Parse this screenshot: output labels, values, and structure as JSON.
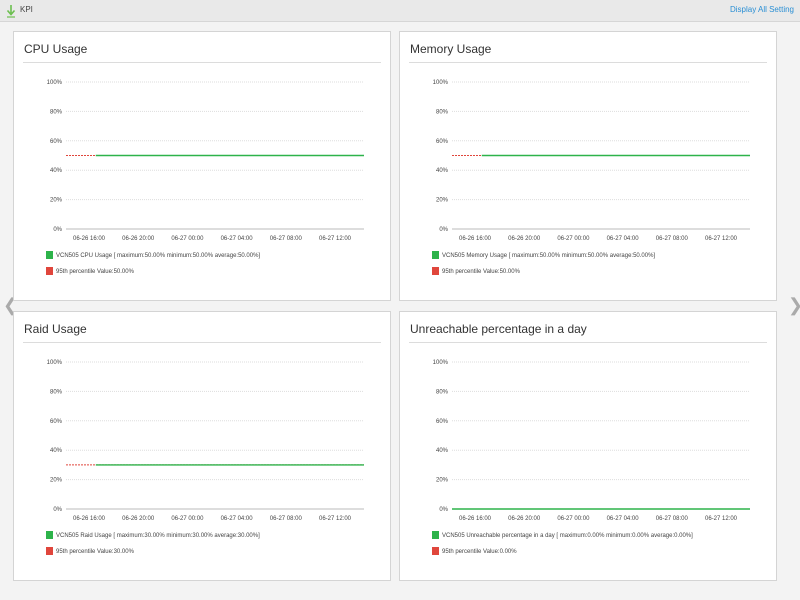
{
  "header": {
    "title": "KPI",
    "display_all_link": "Display All Setting"
  },
  "colors": {
    "series_green": "#2db34a",
    "percentile_red": "#e0463c",
    "grid": "#dddddd",
    "link": "#2a8fd4"
  },
  "chart_data": [
    {
      "type": "line",
      "title": "CPU Usage",
      "x_ticks": [
        "06-26 16:00",
        "06-26 20:00",
        "06-27 00:00",
        "06-27 04:00",
        "06-27 08:00",
        "06-27 12:00"
      ],
      "y_ticks": [
        "0%",
        "20%",
        "40%",
        "60%",
        "80%",
        "100%"
      ],
      "ylim": [
        0,
        100
      ],
      "series": [
        {
          "name": "VCN505 CPU Usage [ maximum:50.00% minimum:50.00% average:50.00%]",
          "color": "#2db34a",
          "style": "solid",
          "value": 50,
          "x_start": 0.1
        },
        {
          "name": "95th percentile Value:50.00%",
          "color": "#e0463c",
          "style": "dashed",
          "value": 50,
          "x_start": 0
        }
      ]
    },
    {
      "type": "line",
      "title": "Memory Usage",
      "x_ticks": [
        "06-26 16:00",
        "06-26 20:00",
        "06-27 00:00",
        "06-27 04:00",
        "06-27 08:00",
        "06-27 12:00"
      ],
      "y_ticks": [
        "0%",
        "20%",
        "40%",
        "60%",
        "80%",
        "100%"
      ],
      "ylim": [
        0,
        100
      ],
      "series": [
        {
          "name": "VCN505 Memory Usage [ maximum:50.00% minimum:50.00% average:50.00%]",
          "color": "#2db34a",
          "style": "solid",
          "value": 50,
          "x_start": 0.1
        },
        {
          "name": "95th percentile Value:50.00%",
          "color": "#e0463c",
          "style": "dashed",
          "value": 50,
          "x_start": 0
        }
      ]
    },
    {
      "type": "line",
      "title": "Raid Usage",
      "x_ticks": [
        "06-26 16:00",
        "06-26 20:00",
        "06-27 00:00",
        "06-27 04:00",
        "06-27 08:00",
        "06-27 12:00"
      ],
      "y_ticks": [
        "0%",
        "20%",
        "40%",
        "60%",
        "80%",
        "100%"
      ],
      "ylim": [
        0,
        100
      ],
      "series": [
        {
          "name": "VCN505 Raid Usage [ maximum:30.00% minimum:30.00% average:30.00%]",
          "color": "#2db34a",
          "style": "solid",
          "value": 30,
          "x_start": 0.1
        },
        {
          "name": "95th percentile Value:30.00%",
          "color": "#e0463c",
          "style": "dashed",
          "value": 30,
          "x_start": 0
        }
      ]
    },
    {
      "type": "line",
      "title": "Unreachable percentage in a day",
      "x_ticks": [
        "06-26 16:00",
        "06-26 20:00",
        "06-27 00:00",
        "06-27 04:00",
        "06-27 08:00",
        "06-27 12:00"
      ],
      "y_ticks": [
        "0%",
        "20%",
        "40%",
        "60%",
        "80%",
        "100%"
      ],
      "ylim": [
        0,
        100
      ],
      "series": [
        {
          "name": "VCN505 Unreachable percentage in a day [ maximum:0.00% minimum:0.00% average:0.00%]",
          "color": "#2db34a",
          "style": "solid",
          "value": 0,
          "x_start": 0
        },
        {
          "name": "95th percentile Value:0.00%",
          "color": "#e0463c",
          "style": "dashed",
          "value": 0,
          "x_start": 0
        }
      ]
    }
  ]
}
